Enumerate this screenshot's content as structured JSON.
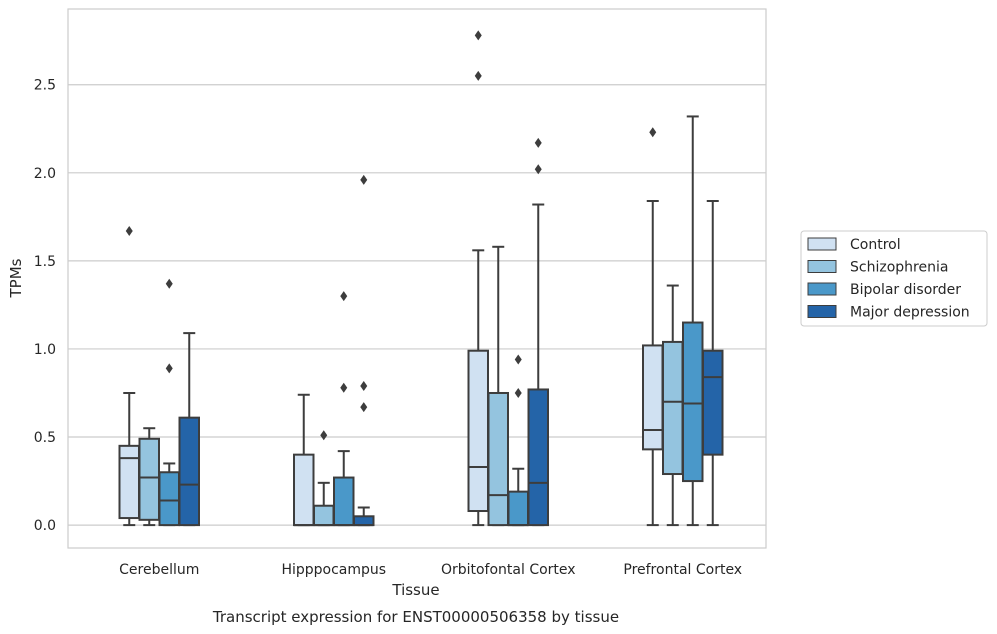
{
  "chart_data": {
    "type": "box",
    "title": "",
    "caption": "Transcript expression for ENST00000506358 by tissue",
    "xlabel": "Tissue",
    "ylabel": "TPMs",
    "ylim": [
      -0.13,
      2.93
    ],
    "yticks": [
      "0.0",
      "0.5",
      "1.0",
      "1.5",
      "2.0",
      "2.5"
    ],
    "yticks_values": [
      0.0,
      0.5,
      1.0,
      1.5,
      2.0,
      2.5
    ],
    "grid": "horizontal",
    "legend_position": "right",
    "categories": [
      "Cerebellum",
      "Hipppocampus",
      "Orbitofontal Cortex",
      "Prefrontal Cortex"
    ],
    "series": [
      {
        "name": "Control",
        "color": "#d0e1f2",
        "boxes": [
          {
            "q1": 0.04,
            "median": 0.38,
            "q3": 0.45,
            "whisker_low": 0.0,
            "whisker_high": 0.75,
            "outliers": [
              1.67
            ]
          },
          {
            "q1": 0.0,
            "median": 0.0,
            "q3": 0.4,
            "whisker_low": 0.0,
            "whisker_high": 0.74,
            "outliers": []
          },
          {
            "q1": 0.08,
            "median": 0.33,
            "q3": 0.99,
            "whisker_low": 0.0,
            "whisker_high": 1.56,
            "outliers": [
              2.55,
              2.78
            ]
          },
          {
            "q1": 0.43,
            "median": 0.54,
            "q3": 1.02,
            "whisker_low": 0.0,
            "whisker_high": 1.84,
            "outliers": [
              2.23
            ]
          }
        ]
      },
      {
        "name": "Schizophrenia",
        "color": "#94c4df",
        "boxes": [
          {
            "q1": 0.03,
            "median": 0.27,
            "q3": 0.49,
            "whisker_low": 0.0,
            "whisker_high": 0.55,
            "outliers": []
          },
          {
            "q1": 0.0,
            "median": 0.0,
            "q3": 0.11,
            "whisker_low": 0.0,
            "whisker_high": 0.24,
            "outliers": [
              0.51
            ]
          },
          {
            "q1": 0.0,
            "median": 0.17,
            "q3": 0.75,
            "whisker_low": 0.0,
            "whisker_high": 1.58,
            "outliers": []
          },
          {
            "q1": 0.29,
            "median": 0.7,
            "q3": 1.04,
            "whisker_low": 0.0,
            "whisker_high": 1.36,
            "outliers": []
          }
        ]
      },
      {
        "name": "Bipolar disorder",
        "color": "#4a98c9",
        "boxes": [
          {
            "q1": 0.0,
            "median": 0.14,
            "q3": 0.3,
            "whisker_low": 0.0,
            "whisker_high": 0.35,
            "outliers": [
              0.89,
              1.37
            ]
          },
          {
            "q1": 0.0,
            "median": 0.0,
            "q3": 0.27,
            "whisker_low": 0.0,
            "whisker_high": 0.42,
            "outliers": [
              0.78,
              1.3
            ]
          },
          {
            "q1": 0.0,
            "median": 0.0,
            "q3": 0.19,
            "whisker_low": 0.0,
            "whisker_high": 0.32,
            "outliers": [
              0.75,
              0.94
            ]
          },
          {
            "q1": 0.25,
            "median": 0.69,
            "q3": 1.15,
            "whisker_low": 0.0,
            "whisker_high": 2.32,
            "outliers": []
          }
        ]
      },
      {
        "name": "Major depression",
        "color": "#2464a8",
        "boxes": [
          {
            "q1": 0.0,
            "median": 0.23,
            "q3": 0.61,
            "whisker_low": 0.0,
            "whisker_high": 1.09,
            "outliers": []
          },
          {
            "q1": 0.0,
            "median": 0.0,
            "q3": 0.05,
            "whisker_low": 0.0,
            "whisker_high": 0.1,
            "outliers": [
              0.67,
              0.79,
              1.96
            ]
          },
          {
            "q1": 0.0,
            "median": 0.24,
            "q3": 0.77,
            "whisker_low": 0.0,
            "whisker_high": 1.82,
            "outliers": [
              2.02,
              2.17
            ]
          },
          {
            "q1": 0.4,
            "median": 0.84,
            "q3": 0.99,
            "whisker_low": 0.0,
            "whisker_high": 1.84,
            "outliers": []
          }
        ]
      }
    ]
  }
}
